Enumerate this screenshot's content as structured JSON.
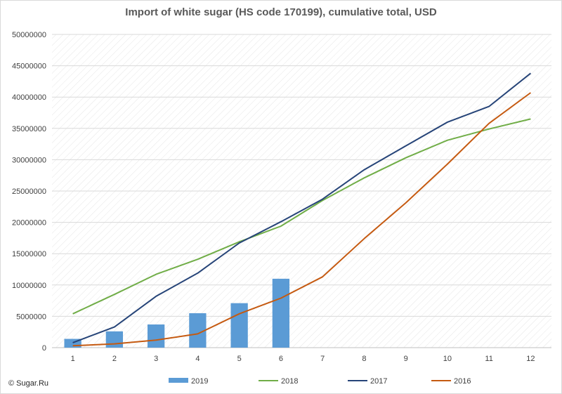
{
  "credit": "© Sugar.Ru",
  "chart_data": {
    "type": "bar",
    "title": "Import of white sugar (HS code 170199), cumulative total, USD",
    "xlabel": "",
    "ylabel": "",
    "categories": [
      "1",
      "2",
      "3",
      "4",
      "5",
      "6",
      "7",
      "8",
      "9",
      "10",
      "11",
      "12"
    ],
    "ylim": [
      0,
      50000000
    ],
    "yticks": [
      "0",
      "5000000",
      "10000000",
      "15000000",
      "20000000",
      "25000000",
      "30000000",
      "35000000",
      "40000000",
      "45000000",
      "50000000"
    ],
    "grid": true,
    "grid_style": "diagonal-hatch",
    "legend_position": "bottom",
    "series": [
      {
        "name": "2019",
        "kind": "bar",
        "color": "#5b9bd5",
        "values": [
          1400000,
          2600000,
          3700000,
          5500000,
          7100000,
          11000000,
          null,
          null,
          null,
          null,
          null,
          null
        ]
      },
      {
        "name": "2018",
        "kind": "line",
        "color": "#70ad47",
        "values": [
          5400000,
          8500000,
          11700000,
          14100000,
          16900000,
          19400000,
          23500000,
          27100000,
          30300000,
          33100000,
          34900000,
          36500000
        ]
      },
      {
        "name": "2017",
        "kind": "line",
        "color": "#264478",
        "values": [
          800000,
          3300000,
          8200000,
          11900000,
          16700000,
          20100000,
          23700000,
          28400000,
          32200000,
          36000000,
          38500000,
          43800000
        ]
      },
      {
        "name": "2016",
        "kind": "line",
        "color": "#c55a11",
        "values": [
          300000,
          600000,
          1200000,
          2200000,
          5400000,
          7900000,
          11300000,
          17400000,
          23100000,
          29300000,
          35800000,
          40700000
        ]
      }
    ]
  }
}
